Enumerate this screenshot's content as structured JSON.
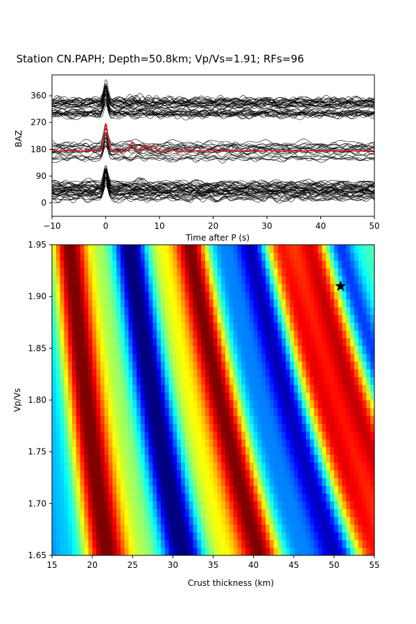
{
  "chart_data": [
    {
      "type": "line",
      "title": "Station CN.PAPH; Depth=50.8km; Vp/Vs=1.91; RFs=96",
      "xlabel": "Time after P (s)",
      "ylabel": "BAZ",
      "xlim": [
        -10,
        50
      ],
      "ylim": [
        -45,
        430
      ],
      "x_ticks": [
        -10,
        0,
        10,
        20,
        30,
        40,
        50
      ],
      "y_ticks": [
        0,
        90,
        180,
        270,
        360
      ],
      "grid": false,
      "trace_groups": [
        {
          "baz_center": 320,
          "count": 38,
          "color": "#000000"
        },
        {
          "baz_center": 175,
          "count": 20,
          "color": "#000000"
        },
        {
          "baz_center": 40,
          "count": 38,
          "color": "#000000"
        }
      ],
      "series": [
        {
          "color": "#d62728",
          "baz": 175,
          "peaks": [
            [
              0,
              90
            ],
            [
              5,
              25
            ],
            [
              7,
              22
            ],
            [
              9,
              15
            ]
          ]
        }
      ],
      "trace_color": "#000000"
    },
    {
      "type": "heatmap",
      "xlabel": "Crust thickness (km)",
      "ylabel": "Vp/Vs",
      "xlim": [
        15,
        55
      ],
      "ylim": [
        1.65,
        1.95
      ],
      "x_ticks": [
        15,
        20,
        25,
        30,
        35,
        40,
        45,
        50,
        55
      ],
      "y_ticks": [
        1.65,
        1.7,
        1.75,
        1.8,
        1.85,
        1.9,
        1.95
      ],
      "colormap": "jet",
      "best_fit": {
        "thickness": 50.8,
        "vpvs": 1.91,
        "marker": "star"
      }
    }
  ]
}
